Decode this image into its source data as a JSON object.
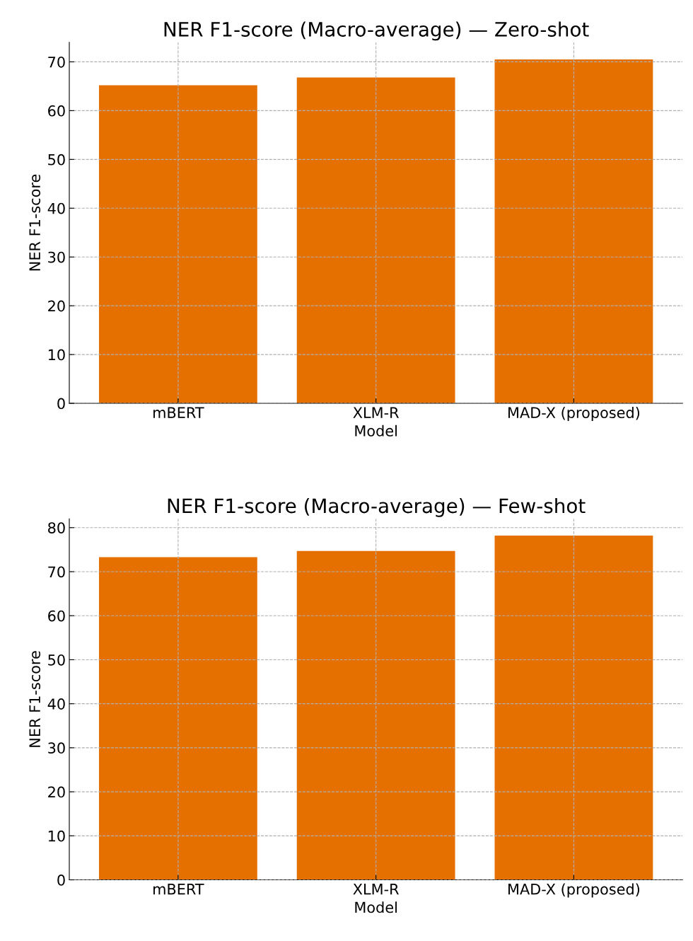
{
  "chart_data": [
    {
      "type": "bar",
      "title": "NER F1-score (Macro-average) — Zero-shot",
      "xlabel": "Model",
      "ylabel": "NER F1-score",
      "categories": [
        "mBERT",
        "XLM-R",
        "MAD-X (proposed)"
      ],
      "values": [
        65.2,
        66.8,
        70.5
      ],
      "color": "#e57000",
      "ylim": [
        0,
        74
      ],
      "yticks": [
        0,
        10,
        20,
        30,
        40,
        50,
        60,
        70
      ],
      "grid": true
    },
    {
      "type": "bar",
      "title": "NER F1-score (Macro-average) — Few-shot",
      "xlabel": "Model",
      "ylabel": "NER F1-score",
      "categories": [
        "mBERT",
        "XLM-R",
        "MAD-X (proposed)"
      ],
      "values": [
        73.3,
        74.7,
        78.2
      ],
      "color": "#e57000",
      "ylim": [
        0,
        82
      ],
      "yticks": [
        0,
        10,
        20,
        30,
        40,
        50,
        60,
        70,
        80
      ],
      "grid": true
    }
  ]
}
